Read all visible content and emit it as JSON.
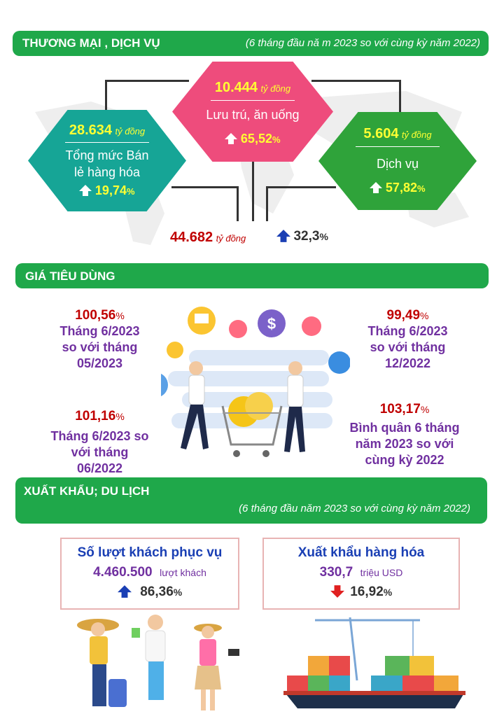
{
  "section1": {
    "title": "THƯƠNG MẠI , DỊCH VỤ",
    "subtitle": "(6 tháng đầu nă m 2023 so với cùng kỳ năm 2022)",
    "retail": {
      "value": "28.634",
      "unit": "tỷ đồng",
      "label_line1": "Tổng mức Bán",
      "label_line2": "lẻ hàng hóa",
      "pct": "19,74",
      "pct_sign": "%"
    },
    "lodging": {
      "value": "10.444",
      "unit": "tỷ đồng",
      "label": "Lưu trú, ăn uống",
      "pct": "65,52",
      "pct_sign": "%"
    },
    "services": {
      "value": "5.604",
      "unit": "tỷ đồng",
      "label": "Dịch vụ",
      "pct": "57,82",
      "pct_sign": "%"
    },
    "total": {
      "value": "44.682",
      "unit": "tỷ đồng",
      "pct": "32,3",
      "pct_sign": "%"
    }
  },
  "section2": {
    "title": "GIÁ TIÊU DÙNG",
    "items": [
      {
        "value": "100,56",
        "sign": "%",
        "l1": "Tháng 6/2023",
        "l2": "so với tháng",
        "l3": "05/2023"
      },
      {
        "value": "99,49",
        "sign": "%",
        "l1": "Tháng 6/2023",
        "l2": "so với tháng",
        "l3": "12/2022"
      },
      {
        "value": "101,16",
        "sign": "%",
        "l1": "Tháng 6/2023 so",
        "l2": "với tháng",
        "l3": "06/2022"
      },
      {
        "value": "103,17",
        "sign": "%",
        "l1": "Bình quân 6 tháng",
        "l2": "năm 2023 so với",
        "l3": "cùng kỳ 2022"
      }
    ]
  },
  "section3": {
    "title": "XUẤT KHẨU; DU LỊCH",
    "subtitle": "(6 tháng đầu năm 2023 so với cùng kỳ năm 2022)",
    "tourism": {
      "title": "Số lượt khách phục vụ",
      "value": "4.460.500",
      "unit": "lượt khách",
      "pct": "86,36",
      "pct_sign": "%"
    },
    "export": {
      "title": "Xuất khẩu hàng hóa",
      "value": "330,7",
      "unit": "triệu USD",
      "pct": "16,92",
      "pct_sign": "%"
    }
  },
  "colors": {
    "green": "#1fa84a",
    "teal": "#16a596",
    "pink": "#ee4c7c",
    "dark_red": "#c00000",
    "purple": "#7030a0",
    "up_arrow": "#1a3fb4",
    "down_arrow": "#e02020"
  },
  "icons": [
    "up-arrow-icon",
    "down-arrow-icon",
    "world-map-icon"
  ]
}
